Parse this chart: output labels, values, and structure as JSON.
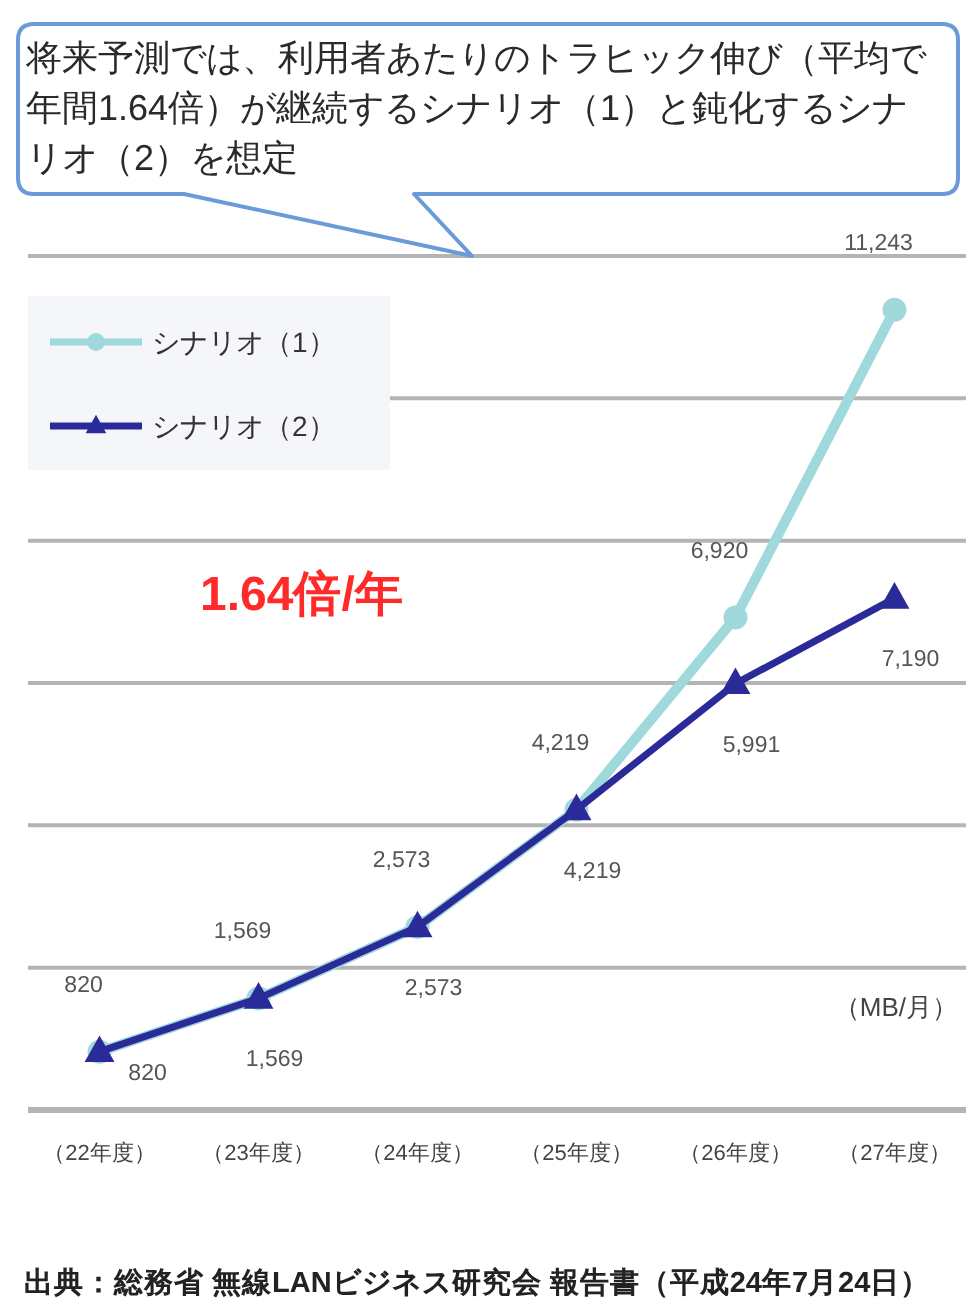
{
  "chart_data": {
    "type": "line",
    "categories": [
      "（22年度）",
      "（23年度）",
      "（24年度）",
      "（25年度）",
      "（26年度）",
      "（27年度）"
    ],
    "series": [
      {
        "name": "シナリオ（1）",
        "color": "#9fd9dc",
        "marker": "circle",
        "values": [
          820,
          1569,
          2573,
          4219,
          6920,
          11243
        ],
        "value_labels": [
          "820",
          "1,569",
          "2,573",
          "4,219",
          "6,920",
          "11,243"
        ]
      },
      {
        "name": "シナリオ（2）",
        "color": "#2a2a98",
        "marker": "triangle",
        "values": [
          820,
          1569,
          2573,
          4219,
          5991,
          7190
        ],
        "value_labels": [
          "820",
          "1,569",
          "2,573",
          "4,219",
          "5,991",
          "7,190"
        ]
      }
    ],
    "ylim": [
      0,
      12000
    ],
    "yticks": [
      {
        "value": 0,
        "label": null
      },
      {
        "value": 2000,
        "label": null
      },
      {
        "value": 4000,
        "label": null
      },
      {
        "value": 6000,
        "label": null
      },
      {
        "value": 8000,
        "label": null
      },
      {
        "value": 10000,
        "label": null
      },
      {
        "value": 12000,
        "label": null
      }
    ],
    "tick_labels": "x",
    "grid": "y",
    "legend": "top left",
    "ylabel": "（MB/月）",
    "annotations": [
      "将来予測では、利用者あたりのトラヒック伸び（平均で年間1.64倍）が継続するシナリオ（1）と鈍化するシナリオ（2）を想定",
      "1.64倍/年",
      "出典：総務省 無線LANビジネス研究会 報告書（平成24年7月24日）"
    ]
  }
}
